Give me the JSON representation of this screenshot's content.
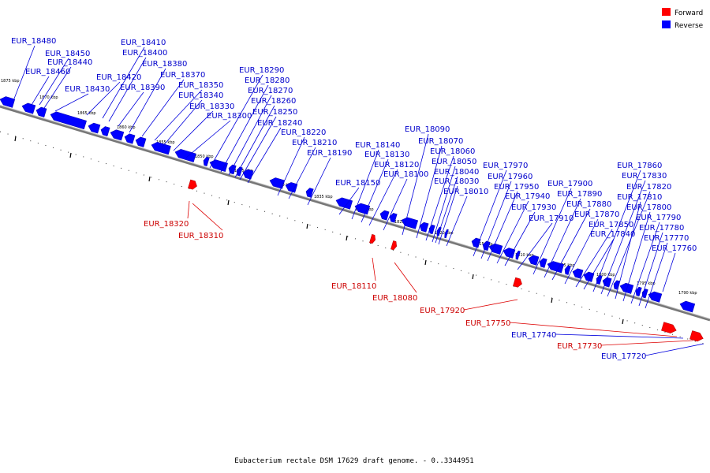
{
  "colors": {
    "forward": "#ff0000",
    "reverse": "#0000ff",
    "backbone": "#888888"
  },
  "legend": [
    {
      "label": "Forward",
      "strand": "forward"
    },
    {
      "label": "Reverse",
      "strand": "reverse"
    }
  ],
  "caption": "Eubacterium rectale DSM 17629 draft genome. - 0..3344951",
  "kbp_ticks": [
    "1875 kbp",
    "1870 kbp",
    "1865 kbp",
    "1860 kbp",
    "1855 kbp",
    "1850 kbp",
    "1845 kbp",
    "1840 kbp",
    "1835 kbp",
    "1830 kbp",
    "1825 kbp",
    "1820 kbp",
    "1815 kbp",
    "1810 kbp",
    "1805 kbp",
    "1800 kbp",
    "1795 kbp",
    "1790 kbp"
  ],
  "genes": [
    {
      "id": "EUR_18480",
      "strand": "reverse"
    },
    {
      "id": "EUR_18460",
      "strand": "reverse"
    },
    {
      "id": "EUR_18450",
      "strand": "reverse"
    },
    {
      "id": "EUR_18440",
      "strand": "reverse"
    },
    {
      "id": "EUR_18430",
      "strand": "reverse"
    },
    {
      "id": "EUR_18420",
      "strand": "reverse"
    },
    {
      "id": "EUR_18410",
      "strand": "reverse"
    },
    {
      "id": "EUR_18400",
      "strand": "reverse"
    },
    {
      "id": "EUR_18390",
      "strand": "reverse"
    },
    {
      "id": "EUR_18380",
      "strand": "reverse"
    },
    {
      "id": "EUR_18370",
      "strand": "reverse"
    },
    {
      "id": "EUR_18350",
      "strand": "reverse"
    },
    {
      "id": "EUR_18340",
      "strand": "reverse"
    },
    {
      "id": "EUR_18330",
      "strand": "reverse"
    },
    {
      "id": "EUR_18300",
      "strand": "reverse"
    },
    {
      "id": "EUR_18320",
      "strand": "forward"
    },
    {
      "id": "EUR_18310",
      "strand": "forward"
    },
    {
      "id": "EUR_18290",
      "strand": "reverse"
    },
    {
      "id": "EUR_18280",
      "strand": "reverse"
    },
    {
      "id": "EUR_18270",
      "strand": "reverse"
    },
    {
      "id": "EUR_18260",
      "strand": "reverse"
    },
    {
      "id": "EUR_18250",
      "strand": "reverse"
    },
    {
      "id": "EUR_18240",
      "strand": "reverse"
    },
    {
      "id": "EUR_18220",
      "strand": "reverse"
    },
    {
      "id": "EUR_18210",
      "strand": "reverse"
    },
    {
      "id": "EUR_18190",
      "strand": "reverse"
    },
    {
      "id": "EUR_18150",
      "strand": "reverse"
    },
    {
      "id": "EUR_18140",
      "strand": "reverse"
    },
    {
      "id": "EUR_18130",
      "strand": "reverse"
    },
    {
      "id": "EUR_18120",
      "strand": "reverse"
    },
    {
      "id": "EUR_18100",
      "strand": "reverse"
    },
    {
      "id": "EUR_18110",
      "strand": "forward"
    },
    {
      "id": "EUR_18080",
      "strand": "forward"
    },
    {
      "id": "EUR_18090",
      "strand": "reverse"
    },
    {
      "id": "EUR_18070",
      "strand": "reverse"
    },
    {
      "id": "EUR_18060",
      "strand": "reverse"
    },
    {
      "id": "EUR_18050",
      "strand": "reverse"
    },
    {
      "id": "EUR_18040",
      "strand": "reverse"
    },
    {
      "id": "EUR_18030",
      "strand": "reverse"
    },
    {
      "id": "EUR_18010",
      "strand": "reverse"
    },
    {
      "id": "EUR_17970",
      "strand": "reverse"
    },
    {
      "id": "EUR_17960",
      "strand": "reverse"
    },
    {
      "id": "EUR_17950",
      "strand": "reverse"
    },
    {
      "id": "EUR_17940",
      "strand": "reverse"
    },
    {
      "id": "EUR_17930",
      "strand": "reverse"
    },
    {
      "id": "EUR_17910",
      "strand": "reverse"
    },
    {
      "id": "EUR_17920",
      "strand": "forward"
    },
    {
      "id": "EUR_17900",
      "strand": "reverse"
    },
    {
      "id": "EUR_17890",
      "strand": "reverse"
    },
    {
      "id": "EUR_17880",
      "strand": "reverse"
    },
    {
      "id": "EUR_17870",
      "strand": "reverse"
    },
    {
      "id": "EUR_17850",
      "strand": "reverse"
    },
    {
      "id": "EUR_17840",
      "strand": "reverse"
    },
    {
      "id": "EUR_17860",
      "strand": "reverse"
    },
    {
      "id": "EUR_17830",
      "strand": "reverse"
    },
    {
      "id": "EUR_17820",
      "strand": "reverse"
    },
    {
      "id": "EUR_17810",
      "strand": "reverse"
    },
    {
      "id": "EUR_17800",
      "strand": "reverse"
    },
    {
      "id": "EUR_17790",
      "strand": "reverse"
    },
    {
      "id": "EUR_17780",
      "strand": "reverse"
    },
    {
      "id": "EUR_17770",
      "strand": "reverse"
    },
    {
      "id": "EUR_17760",
      "strand": "reverse"
    },
    {
      "id": "EUR_17750",
      "strand": "forward"
    },
    {
      "id": "EUR_17740",
      "strand": "reverse"
    },
    {
      "id": "EUR_17730",
      "strand": "forward"
    },
    {
      "id": "EUR_17720",
      "strand": "reverse"
    }
  ]
}
